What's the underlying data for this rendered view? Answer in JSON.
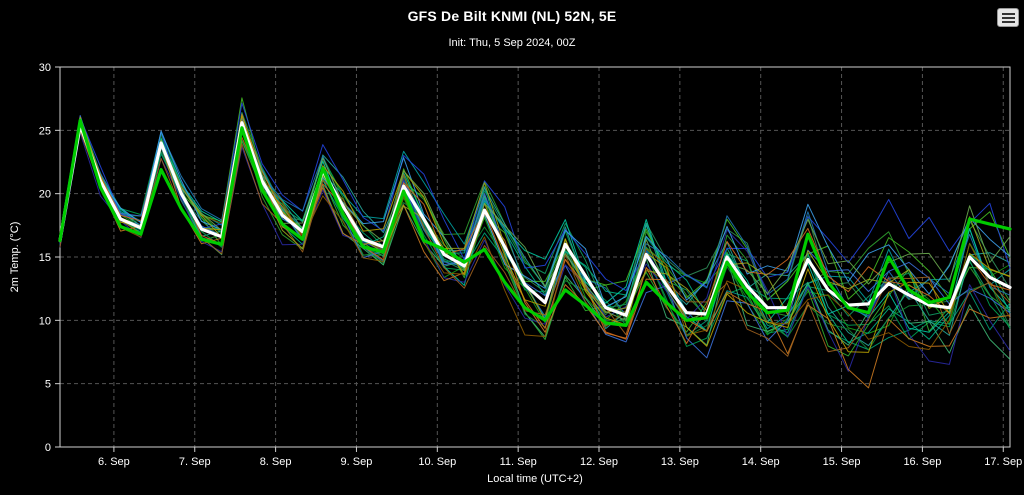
{
  "chart_data": {
    "type": "line",
    "title": "GFS De Bilt KNMI (NL) 52N, 5E",
    "subtitle": "Init: Thu, 5 Sep 2024, 00Z",
    "xlabel": "Local time (UTC+2)",
    "ylabel": "2m Temp. (°C)",
    "ylim": [
      0,
      30
    ],
    "yticks": [
      0,
      5,
      10,
      15,
      20,
      25,
      30
    ],
    "grid": true,
    "background": "#000000",
    "step_hours": 6,
    "x_total_hours": 282,
    "x_tick_hours": [
      16,
      40,
      64,
      88,
      112,
      136,
      160,
      184,
      208,
      232,
      256,
      280
    ],
    "x_tick_labels": [
      "6. Sep",
      "7. Sep",
      "8. Sep",
      "9. Sep",
      "10. Sep",
      "11. Sep",
      "12. Sep",
      "13. Sep",
      "14. Sep",
      "15. Sep",
      "16. Sep",
      "17. Sep"
    ],
    "series": [
      {
        "name": "thick-white-line",
        "color": "#ffffff",
        "width": 3.2,
        "values": [
          16.3,
          25.4,
          21.0,
          18.0,
          17.3,
          24.0,
          20.0,
          17.2,
          16.6,
          25.6,
          21.0,
          18.3,
          17.0,
          21.8,
          19.0,
          16.4,
          15.8,
          20.6,
          18.0,
          15.2,
          14.3,
          18.7,
          15.8,
          12.8,
          11.4,
          16.0,
          13.5,
          11.0,
          10.4,
          15.2,
          12.8,
          10.6,
          10.5,
          15.0,
          12.7,
          11.0,
          11.0,
          14.8,
          12.4,
          11.2,
          11.3,
          12.9,
          12.0,
          11.2,
          11.0,
          15.0,
          13.4,
          12.6
        ]
      },
      {
        "name": "thick-green-line",
        "color": "#00cc00",
        "width": 3.2,
        "values": [
          16.3,
          25.8,
          20.5,
          17.4,
          16.8,
          21.9,
          18.8,
          16.4,
          16.0,
          25.2,
          20.3,
          17.6,
          16.4,
          22.0,
          18.4,
          15.8,
          15.4,
          20.2,
          16.3,
          15.6,
          14.6,
          15.6,
          13.0,
          11.0,
          10.0,
          12.4,
          11.2,
          9.8,
          9.6,
          13.0,
          11.4,
          10.0,
          10.2,
          14.6,
          12.2,
          10.6,
          10.8,
          16.8,
          13.0,
          11.0,
          10.6,
          15.0,
          12.4,
          11.4,
          11.8,
          18.0,
          17.6,
          17.2
        ]
      }
    ],
    "ensemble_members": {
      "count": 26,
      "line_width": 1,
      "spread_base": 0.8,
      "spread_growth": 3.2,
      "noise_persistence": 0.55,
      "noise_scale": 0.7,
      "members": [
        {
          "color": "#18a018",
          "seed": 101,
          "amp": 1.0,
          "offset": 0.2
        },
        {
          "color": "#00a050",
          "seed": 102,
          "amp": 0.9,
          "offset": -0.3
        },
        {
          "color": "#2e9e2e",
          "seed": 103,
          "amp": 1.1,
          "offset": 0.5
        },
        {
          "color": "#009e73",
          "seed": 104,
          "amp": 0.8,
          "offset": -0.5
        },
        {
          "color": "#00a0a0",
          "seed": 105,
          "amp": 1.0,
          "offset": 0.1
        },
        {
          "color": "#30b030",
          "seed": 106,
          "amp": 1.2,
          "offset": -0.2
        },
        {
          "color": "#2e8b57",
          "seed": 107,
          "amp": 0.9,
          "offset": 0.4
        },
        {
          "color": "#3cb371",
          "seed": 108,
          "amp": 1.0,
          "offset": -0.6
        },
        {
          "color": "#00b386",
          "seed": 109,
          "amp": 0.85,
          "offset": 0.0
        },
        {
          "color": "#26a69a",
          "seed": 110,
          "amp": 1.1,
          "offset": 0.3
        },
        {
          "color": "#118833",
          "seed": 111,
          "amp": 0.95,
          "offset": -0.4
        },
        {
          "color": "#44bb22",
          "seed": 112,
          "amp": 1.05,
          "offset": 0.6
        },
        {
          "color": "#0f9960",
          "seed": 113,
          "amp": 0.9,
          "offset": -0.1
        },
        {
          "color": "#00c8a0",
          "seed": 114,
          "amp": 1.0,
          "offset": 0.2
        },
        {
          "color": "#2244dd",
          "seed": 115,
          "amp": 1.2,
          "offset": 0.8
        },
        {
          "color": "#3a6fd8",
          "seed": 116,
          "amp": 1.0,
          "offset": -0.2
        },
        {
          "color": "#1f77b4",
          "seed": 117,
          "amp": 0.9,
          "offset": 0.3
        },
        {
          "color": "#2929a3",
          "seed": 118,
          "amp": 1.1,
          "offset": -0.5
        },
        {
          "color": "#3b9de8",
          "seed": 119,
          "amp": 1.0,
          "offset": 0.5
        },
        {
          "color": "#c87820",
          "seed": 120,
          "amp": 1.2,
          "offset": -0.8
        },
        {
          "color": "#a0621e",
          "seed": 121,
          "amp": 1.0,
          "offset": -0.4
        },
        {
          "color": "#d2691e",
          "seed": 122,
          "amp": 0.9,
          "offset": 0.2
        },
        {
          "color": "#8b5a00",
          "seed": 123,
          "amp": 1.1,
          "offset": -0.6
        },
        {
          "color": "#9aa818",
          "seed": 124,
          "amp": 0.95,
          "offset": 0.1
        },
        {
          "color": "#b8a000",
          "seed": 125,
          "amp": 0.9,
          "offset": -0.2
        },
        {
          "color": "#6aa84f",
          "seed": 126,
          "amp": 1.0,
          "offset": 0.4
        }
      ]
    }
  },
  "controls": {
    "menu_icon": "hamburger-menu-icon"
  }
}
